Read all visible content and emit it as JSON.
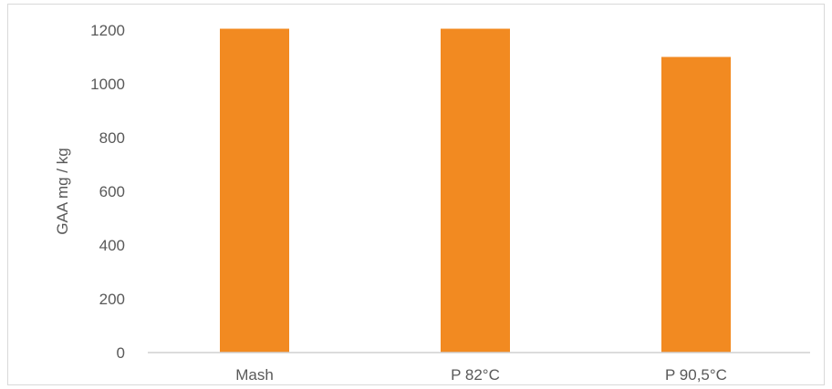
{
  "chart_data": {
    "type": "bar",
    "categories": [
      "Mash",
      "P 82°C",
      "P 90,5°C"
    ],
    "series": [
      {
        "values": [
          1205,
          1205,
          1100
        ]
      }
    ],
    "ylabel": "GAA mg / kg",
    "xlabel": "",
    "ylim": [
      0,
      1200
    ],
    "yticks": [
      0,
      200,
      400,
      600,
      800,
      1000,
      1200
    ],
    "grid": false,
    "legend": "none",
    "colors": {
      "bar": "#F28A21",
      "axis": "#d0d0d0",
      "text": "#595959"
    }
  }
}
